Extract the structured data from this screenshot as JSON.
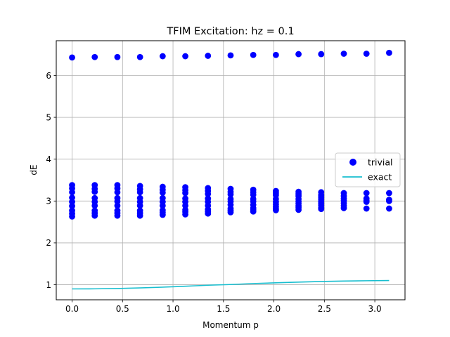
{
  "chart_data": {
    "type": "scatter",
    "title": "TFIM Excitation: hz = 0.1",
    "xlabel": "Momentum p",
    "ylabel": "dE",
    "xlim": [
      -0.157,
      3.299
    ],
    "ylim": [
      0.64,
      6.83
    ],
    "xticks": [
      0.0,
      0.5,
      1.0,
      1.5,
      2.0,
      2.5,
      3.0
    ],
    "xtick_labels": [
      "0.0",
      "0.5",
      "1.0",
      "1.5",
      "2.0",
      "2.5",
      "3.0"
    ],
    "yticks": [
      1,
      2,
      3,
      4,
      5,
      6
    ],
    "ytick_labels": [
      "1",
      "2",
      "3",
      "4",
      "5",
      "6"
    ],
    "grid": true,
    "legend_position": "center-right",
    "series": [
      {
        "name": "trivial",
        "kind": "markers",
        "color": "#0000ff",
        "x": [
          0.0,
          0.2244,
          0.4488,
          0.6732,
          0.8976,
          1.122,
          1.3464,
          1.5708,
          1.7952,
          2.0196,
          2.244,
          2.4684,
          2.6928,
          2.9172,
          3.1416
        ],
        "y_groups": [
          [
            6.43,
            3.38,
            3.3,
            3.21,
            3.08,
            2.98,
            2.88,
            2.77,
            2.7,
            2.63
          ],
          [
            6.44,
            3.38,
            3.29,
            3.22,
            3.07,
            2.98,
            2.89,
            2.77,
            2.71,
            2.65
          ],
          [
            6.44,
            3.38,
            3.3,
            3.21,
            3.07,
            2.99,
            2.89,
            2.77,
            2.71,
            2.65
          ],
          [
            6.44,
            3.36,
            3.28,
            3.21,
            3.07,
            2.98,
            2.89,
            2.77,
            2.71,
            2.65
          ],
          [
            6.46,
            3.34,
            3.27,
            3.2,
            3.07,
            2.98,
            2.89,
            2.78,
            2.73,
            2.67
          ],
          [
            6.46,
            3.33,
            3.26,
            3.19,
            3.06,
            2.98,
            2.89,
            2.79,
            2.74,
            2.68
          ],
          [
            6.47,
            3.31,
            3.24,
            3.17,
            3.06,
            2.98,
            2.89,
            2.8,
            2.75,
            2.7
          ],
          [
            6.48,
            3.29,
            3.22,
            3.16,
            3.05,
            2.99,
            2.91,
            2.82,
            2.77,
            2.73
          ],
          [
            6.49,
            3.27,
            3.21,
            3.15,
            3.05,
            2.99,
            2.91,
            2.83,
            2.79,
            2.75
          ],
          [
            6.49,
            3.24,
            3.19,
            3.14,
            3.05,
            2.98,
            2.92,
            2.86,
            2.81,
            2.78
          ],
          [
            6.51,
            3.22,
            3.17,
            3.12,
            3.05,
            2.99,
            2.94,
            2.88,
            2.84,
            2.79
          ],
          [
            6.51,
            3.21,
            3.14,
            3.09,
            3.04,
            2.99,
            2.95,
            2.9,
            2.84,
            2.81
          ],
          [
            6.52,
            3.19,
            3.12,
            3.06,
            3.01,
            2.95,
            2.89,
            2.83
          ],
          [
            6.52,
            3.19,
            3.06,
            3.01,
            2.98,
            2.82
          ],
          [
            6.54,
            3.19,
            3.03,
            3.0,
            2.82
          ]
        ]
      },
      {
        "name": "exact",
        "kind": "line",
        "color": "#17becf",
        "x": [
          0.0,
          0.2244,
          0.4488,
          0.6732,
          0.8976,
          1.122,
          1.3464,
          1.5708,
          1.7952,
          2.0196,
          2.244,
          2.4684,
          2.6928,
          2.9172,
          3.1416
        ],
        "y": [
          0.9,
          0.902,
          0.91,
          0.924,
          0.942,
          0.964,
          0.988,
          1.005,
          1.028,
          1.046,
          1.063,
          1.077,
          1.087,
          1.095,
          1.1
        ]
      }
    ]
  }
}
